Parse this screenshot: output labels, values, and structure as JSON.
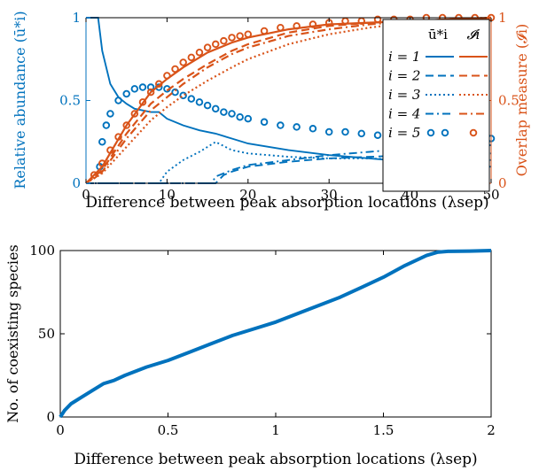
{
  "colors": {
    "blue": "#0072BD",
    "orange": "#D95319",
    "axis": "#000000"
  },
  "chart_data": [
    {
      "type": "line",
      "xlabel": "Difference between peak absorption locations (λsep)",
      "ylabel_left": "Relative abundance (ū*i)",
      "ylabel_right": "Overlap measure (𝓘i)",
      "xlim": [
        0,
        50
      ],
      "ylim_left": [
        0,
        1
      ],
      "ylim_right": [
        0,
        1
      ],
      "xticks": [
        "0",
        "10",
        "20",
        "30",
        "40",
        "50"
      ],
      "yticks_left": [
        "0",
        "0.5",
        "1"
      ],
      "yticks_right": [
        "0",
        "0.5",
        "1"
      ],
      "legend": {
        "placement": "top-right",
        "col_headers": [
          "ū*i",
          "𝓘i"
        ],
        "rows": [
          "i = 1",
          "i = 2",
          "i = 3",
          "i = 4",
          "i = 5"
        ]
      },
      "series": [
        {
          "i": "1",
          "measure": "abundance",
          "style": "solid",
          "x": [
            0,
            1.5,
            2,
            3,
            4,
            5,
            6,
            7,
            8,
            9,
            10,
            12,
            14,
            16,
            18,
            20,
            25,
            30,
            35,
            40,
            45,
            50
          ],
          "y": [
            1,
            1,
            0.8,
            0.6,
            0.52,
            0.48,
            0.45,
            0.44,
            0.43,
            0.43,
            0.39,
            0.35,
            0.32,
            0.3,
            0.27,
            0.24,
            0.2,
            0.17,
            0.15,
            0.13,
            0.11,
            0.1
          ]
        },
        {
          "i": "2",
          "measure": "abundance",
          "style": "dashed",
          "x": [
            0,
            16,
            17,
            18,
            20,
            25,
            30,
            35,
            40,
            45,
            50
          ],
          "y": [
            0,
            0,
            0.05,
            0.07,
            0.1,
            0.13,
            0.15,
            0.16,
            0.17,
            0.18,
            0.18
          ]
        },
        {
          "i": "3",
          "measure": "abundance",
          "style": "dotted",
          "x": [
            0,
            9,
            10,
            12,
            14,
            16,
            18,
            20,
            25,
            30,
            35,
            40,
            45,
            50
          ],
          "y": [
            0,
            0,
            0.07,
            0.14,
            0.19,
            0.25,
            0.2,
            0.18,
            0.16,
            0.15,
            0.15,
            0.14,
            0.14,
            0.14
          ]
        },
        {
          "i": "4",
          "measure": "abundance",
          "style": "dashdot",
          "x": [
            0,
            15.5,
            16,
            17,
            18,
            20,
            25,
            30,
            35,
            40,
            45,
            50
          ],
          "y": [
            0,
            0,
            0.04,
            0.06,
            0.08,
            0.11,
            0.14,
            0.17,
            0.19,
            0.21,
            0.22,
            0.23
          ]
        },
        {
          "i": "5",
          "measure": "abundance",
          "style": "circles",
          "x": [
            1.7,
            2,
            2.5,
            3,
            4,
            5,
            6,
            7,
            8,
            9,
            10,
            11,
            12,
            13,
            14,
            15,
            16,
            17,
            18,
            19,
            20,
            22,
            24,
            26,
            28,
            30,
            32,
            34,
            36,
            38,
            40,
            42,
            44,
            46,
            48,
            50
          ],
          "y": [
            0.1,
            0.25,
            0.35,
            0.42,
            0.5,
            0.54,
            0.57,
            0.58,
            0.58,
            0.58,
            0.57,
            0.55,
            0.53,
            0.51,
            0.49,
            0.47,
            0.45,
            0.43,
            0.42,
            0.4,
            0.39,
            0.37,
            0.35,
            0.34,
            0.33,
            0.31,
            0.31,
            0.3,
            0.29,
            0.29,
            0.28,
            0.28,
            0.27,
            0.27,
            0.27,
            0.27
          ]
        },
        {
          "i": "1",
          "measure": "overlap",
          "style": "solid",
          "x": [
            0,
            2,
            5,
            8,
            10,
            12,
            15,
            18,
            20,
            25,
            30,
            35,
            40,
            45,
            50
          ],
          "y": [
            0,
            0.1,
            0.35,
            0.55,
            0.63,
            0.7,
            0.79,
            0.85,
            0.88,
            0.93,
            0.96,
            0.97,
            0.98,
            0.99,
            1
          ]
        },
        {
          "i": "2",
          "measure": "overlap",
          "style": "dashed",
          "x": [
            0,
            2,
            5,
            8,
            10,
            12,
            15,
            18,
            20,
            25,
            30,
            35,
            40,
            45,
            50
          ],
          "y": [
            0,
            0.08,
            0.3,
            0.48,
            0.56,
            0.63,
            0.72,
            0.8,
            0.84,
            0.91,
            0.95,
            0.97,
            0.98,
            0.99,
            1
          ]
        },
        {
          "i": "3",
          "measure": "overlap",
          "style": "dotted",
          "x": [
            0,
            2,
            5,
            8,
            10,
            12,
            15,
            18,
            20,
            25,
            30,
            35,
            40,
            45,
            50
          ],
          "y": [
            0,
            0.06,
            0.22,
            0.38,
            0.46,
            0.53,
            0.62,
            0.7,
            0.75,
            0.84,
            0.9,
            0.94,
            0.97,
            0.99,
            1
          ]
        },
        {
          "i": "4",
          "measure": "overlap",
          "style": "dashdot",
          "x": [
            0,
            2,
            5,
            8,
            10,
            12,
            15,
            18,
            20,
            25,
            30,
            35,
            40,
            45,
            50
          ],
          "y": [
            0,
            0.07,
            0.27,
            0.44,
            0.52,
            0.6,
            0.7,
            0.78,
            0.82,
            0.89,
            0.93,
            0.96,
            0.98,
            0.99,
            1
          ]
        },
        {
          "i": "5",
          "measure": "overlap",
          "style": "circles",
          "x": [
            1,
            2,
            3,
            4,
            5,
            6,
            7,
            8,
            9,
            10,
            11,
            12,
            13,
            14,
            15,
            16,
            17,
            18,
            19,
            20,
            22,
            24,
            26,
            28,
            30,
            32,
            34,
            36,
            38,
            40,
            42,
            44,
            46,
            48,
            50
          ],
          "y": [
            0.05,
            0.12,
            0.2,
            0.28,
            0.35,
            0.42,
            0.49,
            0.55,
            0.6,
            0.65,
            0.69,
            0.73,
            0.76,
            0.79,
            0.82,
            0.84,
            0.86,
            0.88,
            0.89,
            0.9,
            0.92,
            0.94,
            0.95,
            0.96,
            0.97,
            0.98,
            0.98,
            0.99,
            0.99,
            0.99,
            1,
            1,
            1,
            1,
            1
          ]
        }
      ]
    },
    {
      "type": "line",
      "xlabel": "Difference between peak absorption locations (λsep)",
      "ylabel": "No. of coexisting species",
      "xlim": [
        0,
        2
      ],
      "ylim": [
        0,
        100
      ],
      "xticks": [
        "0",
        "0.5",
        "1",
        "1.5",
        "2"
      ],
      "yticks": [
        "0",
        "50",
        "100"
      ],
      "series": [
        {
          "x": [
            0,
            0.02,
            0.05,
            0.1,
            0.15,
            0.2,
            0.25,
            0.3,
            0.4,
            0.5,
            0.6,
            0.7,
            0.8,
            0.9,
            1.0,
            1.1,
            1.2,
            1.3,
            1.4,
            1.5,
            1.6,
            1.7,
            1.75,
            1.8,
            1.9,
            2.0
          ],
          "y": [
            0,
            4,
            8,
            12,
            16,
            20,
            22,
            25,
            30,
            34,
            39,
            44,
            49,
            53,
            57,
            62,
            67,
            72,
            78,
            84,
            91,
            97,
            99,
            99.5,
            99.7,
            100
          ]
        }
      ]
    }
  ]
}
